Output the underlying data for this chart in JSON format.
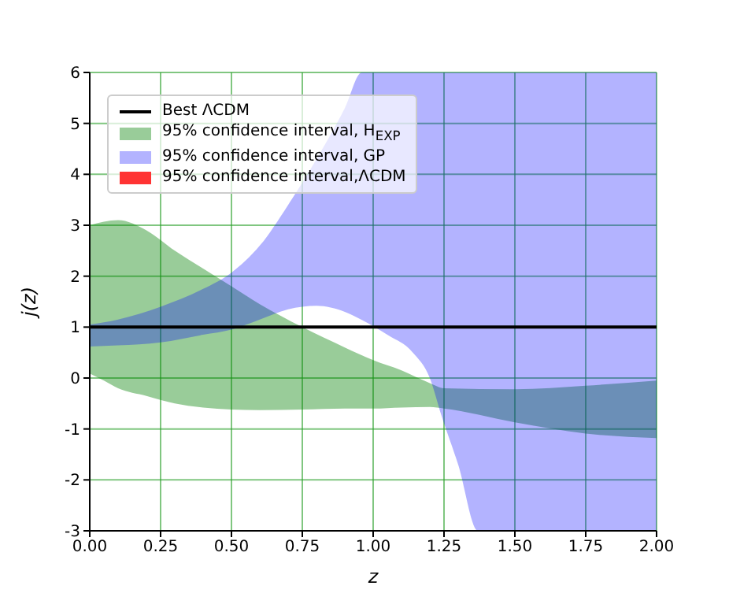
{
  "chart_data": {
    "type": "line",
    "xlabel": "z",
    "ylabel": "j(z)",
    "xlim": [
      0,
      2
    ],
    "ylim": [
      -3,
      6
    ],
    "xticks": [
      {
        "value": 0,
        "label": "0.00"
      },
      {
        "value": 0.25,
        "label": "0.25"
      },
      {
        "value": 0.5,
        "label": "0.50"
      },
      {
        "value": 0.75,
        "label": "0.75"
      },
      {
        "value": 1,
        "label": "1.00"
      },
      {
        "value": 1.25,
        "label": "1.25"
      },
      {
        "value": 1.5,
        "label": "1.50"
      },
      {
        "value": 1.75,
        "label": "1.75"
      },
      {
        "value": 2,
        "label": "2.00"
      }
    ],
    "yticks": [
      -3,
      -2,
      -1,
      0,
      1,
      2,
      3,
      4,
      5,
      6
    ],
    "grid": true,
    "legend": "top left",
    "series": [
      {
        "name": "Best ΛCDM",
        "color": "#000000",
        "x": [
          0,
          2
        ],
        "values": [
          1,
          1
        ]
      },
      {
        "name": "95% confidence interval, H$_{EXP}$",
        "color": "#99cc99",
        "x": [
          0,
          0.05,
          0.1,
          0.2,
          0.3,
          0.4,
          0.5,
          0.6,
          0.75,
          0.9,
          1,
          1.1,
          1.2,
          1.25,
          1.5,
          1.75,
          2
        ],
        "values": [
          null,
          null,
          null,
          null,
          null,
          null,
          null,
          null,
          null,
          null,
          null,
          null,
          null,
          null,
          null,
          null,
          null
        ],
        "lower": [
          0.09,
          -0.05,
          -0.2,
          -0.35,
          -0.5,
          -0.58,
          -0.62,
          -0.63,
          -0.62,
          -0.6,
          -0.6,
          -0.58,
          -0.57,
          -0.6,
          -0.87,
          -1.09,
          -1.18
        ],
        "upper": [
          3,
          3.07,
          3.1,
          2.9,
          2.5,
          2.15,
          1.8,
          1.45,
          1,
          0.6,
          0.35,
          0.15,
          -0.1,
          -0.2,
          -0.22,
          -0.15,
          -0.05
        ]
      },
      {
        "name": "95% confidence interval, GP",
        "color": "#b3b3ff",
        "x": [
          0,
          0.1,
          0.25,
          0.4,
          0.5,
          0.6,
          0.7,
          0.8,
          0.9,
          0.96,
          1.05,
          1.14,
          1.2,
          1.24,
          1.3,
          1.37,
          1.5,
          1.75,
          2
        ],
        "values": [
          null,
          null,
          null,
          null,
          null,
          null,
          null,
          null,
          null,
          null,
          null,
          null,
          null,
          null,
          null,
          null,
          null,
          null,
          null
        ],
        "lower": [
          0.62,
          0.64,
          0.7,
          0.85,
          0.95,
          1.15,
          1.35,
          1.42,
          1.3,
          1.14,
          0.85,
          0.5,
          0,
          -0.72,
          -1.7,
          -3,
          -3,
          -3,
          -3
        ],
        "upper": [
          1.05,
          1.15,
          1.4,
          1.75,
          2.07,
          2.6,
          3.4,
          4.3,
          5.3,
          6,
          6,
          6,
          6,
          6,
          6,
          6,
          6,
          6,
          6
        ]
      },
      {
        "name": "95% confidence interval,ΛCDM",
        "color": "#ff3333"
      }
    ]
  }
}
